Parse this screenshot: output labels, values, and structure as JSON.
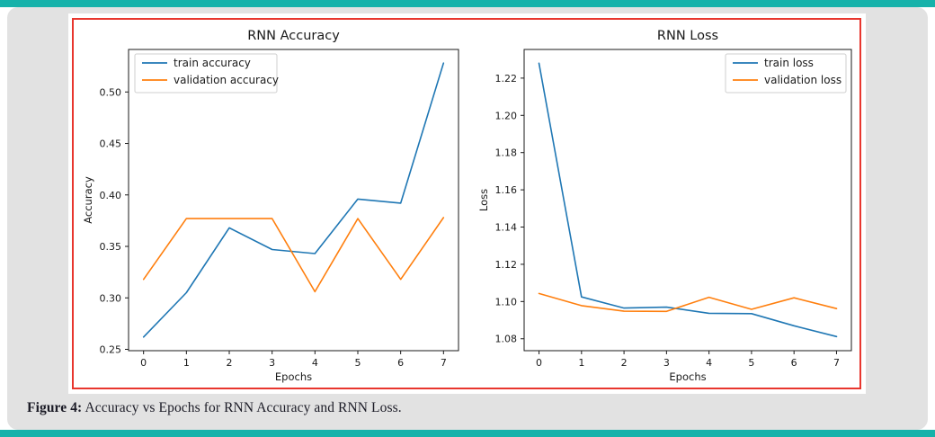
{
  "colors": {
    "accent_teal": "#16b2aa",
    "frame_red": "#e8362e",
    "card_gray": "#e2e2e2",
    "chart_text": "#1a1a1a",
    "train_blue": "#1f77b4",
    "validation_orange": "#ff7f0e"
  },
  "caption": {
    "label": "Figure 4:",
    "text": "Accuracy vs Epochs for RNN Accuracy and RNN Loss."
  },
  "chart_data": [
    {
      "type": "line",
      "title": "RNN Accuracy",
      "xlabel": "Epochs",
      "ylabel": "Accuracy",
      "x": [
        0,
        1,
        2,
        3,
        4,
        5,
        6,
        7
      ],
      "series": [
        {
          "name": "train accuracy",
          "color": "#1f77b4",
          "values": [
            0.262,
            0.305,
            0.368,
            0.347,
            0.343,
            0.396,
            0.392,
            0.528
          ]
        },
        {
          "name": "validation accuracy",
          "color": "#ff7f0e",
          "values": [
            0.318,
            0.377,
            0.377,
            0.377,
            0.306,
            0.377,
            0.318,
            0.378
          ]
        }
      ],
      "xlim": [
        -0.35,
        7.35
      ],
      "ylim": [
        0.2487,
        0.5413
      ],
      "xticks": [
        0,
        1,
        2,
        3,
        4,
        5,
        6,
        7
      ],
      "xtick_labels": [
        "0",
        "1",
        "2",
        "3",
        "4",
        "5",
        "6",
        "7"
      ],
      "yticks": [
        0.25,
        0.3,
        0.35,
        0.4,
        0.45,
        0.5
      ],
      "ytick_labels": [
        "0.25",
        "0.30",
        "0.35",
        "0.40",
        "0.45",
        "0.50"
      ],
      "legend_position": "upper-left",
      "grid": false
    },
    {
      "type": "line",
      "title": "RNN Loss",
      "xlabel": "Epochs",
      "ylabel": "Loss",
      "x": [
        0,
        1,
        2,
        3,
        4,
        5,
        6,
        7
      ],
      "series": [
        {
          "name": "train loss",
          "color": "#1f77b4",
          "values": [
            1.228,
            1.1025,
            1.0965,
            1.097,
            1.0937,
            1.0935,
            1.087,
            1.0812
          ]
        },
        {
          "name": "validation loss",
          "color": "#ff7f0e",
          "values": [
            1.1043,
            1.0978,
            1.0948,
            1.0947,
            1.1023,
            1.0958,
            1.102,
            1.0962
          ]
        }
      ],
      "xlim": [
        -0.35,
        7.35
      ],
      "ylim": [
        1.0736,
        1.2354
      ],
      "xticks": [
        0,
        1,
        2,
        3,
        4,
        5,
        6,
        7
      ],
      "xtick_labels": [
        "0",
        "1",
        "2",
        "3",
        "4",
        "5",
        "6",
        "7"
      ],
      "yticks": [
        1.08,
        1.1,
        1.12,
        1.14,
        1.16,
        1.18,
        1.2,
        1.22
      ],
      "ytick_labels": [
        "1.08",
        "1.10",
        "1.12",
        "1.14",
        "1.16",
        "1.18",
        "1.20",
        "1.22"
      ],
      "legend_position": "upper-right",
      "grid": false
    }
  ]
}
